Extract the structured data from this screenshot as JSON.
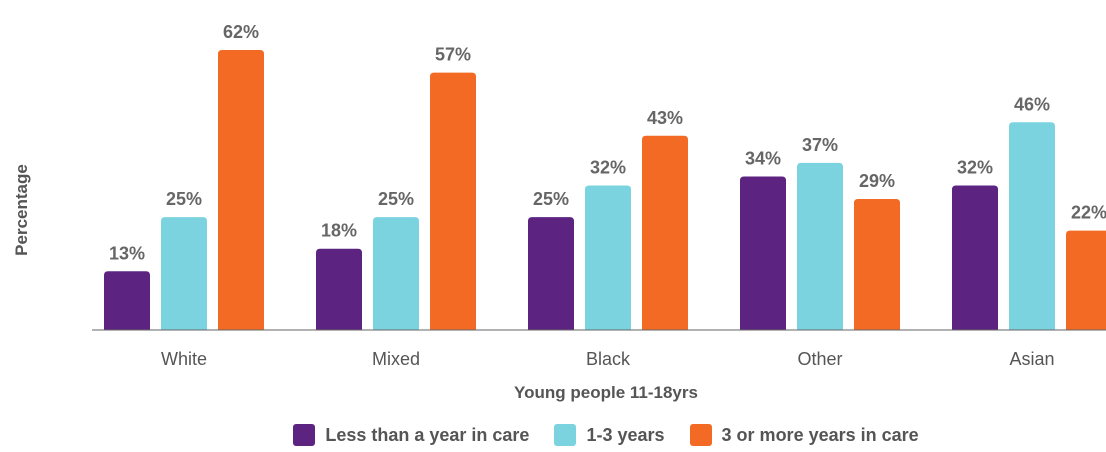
{
  "chart_data": {
    "type": "bar",
    "categories": [
      "White",
      "Mixed",
      "Black",
      "Other",
      "Asian"
    ],
    "series": [
      {
        "name": "Less than a year in care",
        "values": [
          13,
          18,
          25,
          34,
          32
        ],
        "labels": [
          "13%",
          "18%",
          "25%",
          "34%",
          "32%"
        ],
        "color": "#5c2380"
      },
      {
        "name": "1-3 years",
        "values": [
          25,
          25,
          32,
          37,
          46
        ],
        "labels": [
          "25%",
          "25%",
          "32%",
          "37%",
          "46%"
        ],
        "color": "#7bd3e0"
      },
      {
        "name": "3  or more years in care",
        "values": [
          62,
          57,
          43,
          29,
          22
        ],
        "labels": [
          "62%",
          "57%",
          "43%",
          "29%",
          "22%"
        ],
        "color": "#f26a24"
      }
    ],
    "xlabel": "Young people 11-18yrs",
    "ylabel": "Percentage",
    "ylim": [
      0,
      62
    ],
    "grid": false,
    "legend_position": "bottom"
  }
}
